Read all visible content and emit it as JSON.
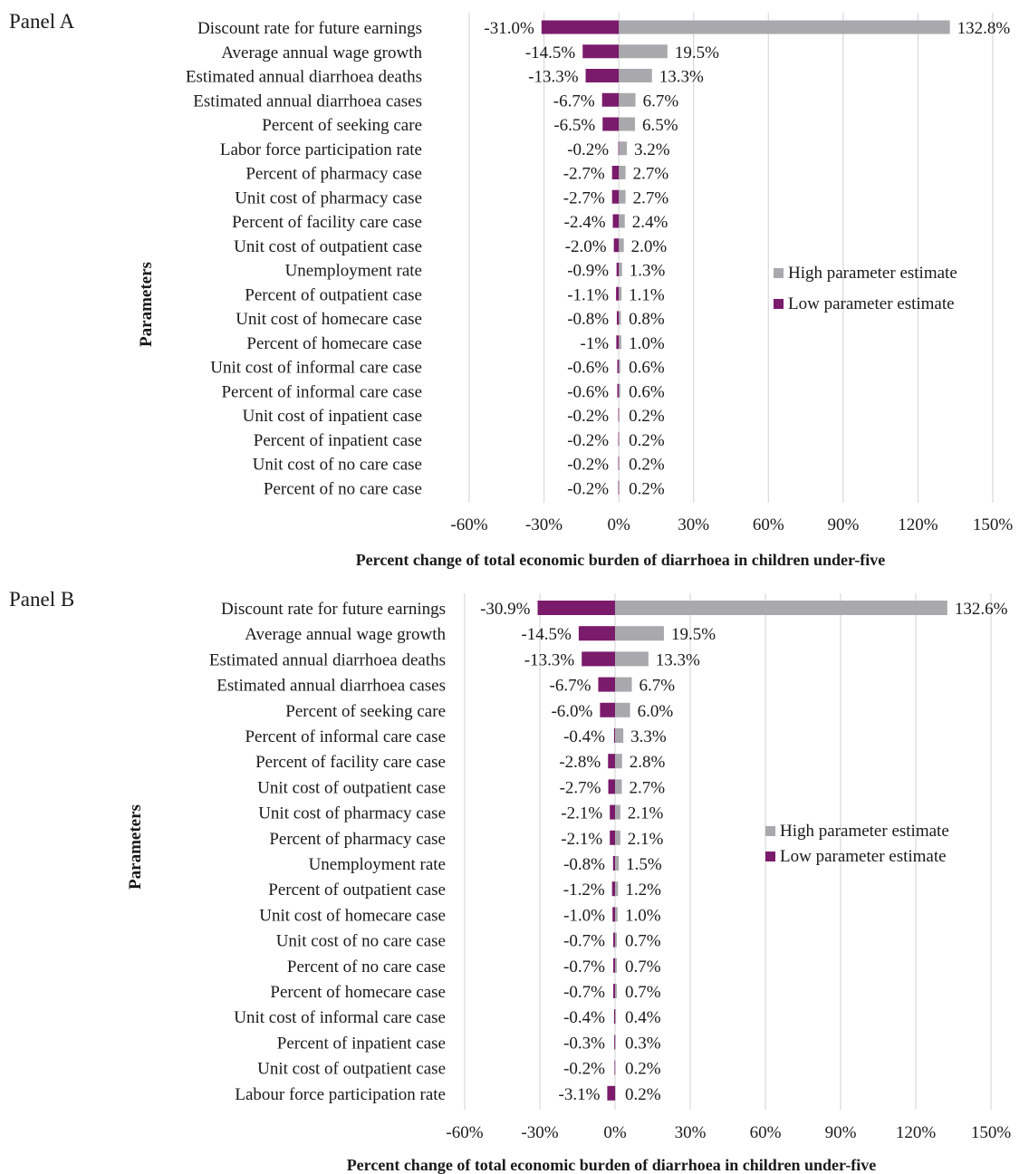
{
  "colors": {
    "high": "#a9a9ad",
    "low": "#7b1b6b",
    "grid": "#d9d9d9"
  },
  "chart_data": [
    {
      "type": "bar",
      "orientation": "horizontal-tornado",
      "panel_label": "Panel A",
      "xlabel": "Percent change of total economic burden of  diarrhoea in children under-five",
      "ylabel": "Parameters",
      "xlim": [
        -60,
        150
      ],
      "xticks": [
        -60,
        -30,
        0,
        30,
        60,
        90,
        120,
        150
      ],
      "xtick_labels": [
        "-60%",
        "-30%",
        "0%",
        "30%",
        "60%",
        "90%",
        "120%",
        "150%"
      ],
      "grid": "vertical",
      "legend_position": "right",
      "legend": [
        "High parameter estimate",
        "Low parameter estimate"
      ],
      "categories": [
        "Discount rate for future earnings",
        "Average annual wage growth",
        "Estimated annual diarrhoea deaths",
        "Estimated annual diarrhoea cases",
        "Percent of seeking care",
        "Labor force participation rate",
        "Percent of pharmacy case",
        "Unit cost of pharmacy case",
        "Percent of facility care case",
        "Unit cost of outpatient case",
        "Unemployment rate",
        "Percent of outpatient case",
        "Unit cost of homecare case",
        "Percent of homecare case",
        "Unit cost of informal care case",
        "Percent of informal care case",
        "Unit cost of inpatient case",
        "Percent of inpatient case",
        "Unit cost of no care case",
        "Percent of no care case"
      ],
      "series": [
        {
          "name": "High parameter estimate",
          "values": [
            132.8,
            19.5,
            13.3,
            6.7,
            6.5,
            3.2,
            2.7,
            2.7,
            2.4,
            2.0,
            1.3,
            1.1,
            0.8,
            1.0,
            0.6,
            0.6,
            0.2,
            0.2,
            0.2,
            0.2
          ],
          "labels": [
            "132.8%",
            "19.5%",
            "13.3%",
            "6.7%",
            "6.5%",
            "3.2%",
            "2.7%",
            "2.7%",
            "2.4%",
            "2.0%",
            "1.3%",
            "1.1%",
            "0.8%",
            "1.0%",
            "0.6%",
            "0.6%",
            "0.2%",
            "0.2%",
            "0.2%",
            "0.2%"
          ]
        },
        {
          "name": "Low parameter estimate",
          "values": [
            -31.0,
            -14.5,
            -13.3,
            -6.7,
            -6.5,
            -0.2,
            -2.7,
            -2.7,
            -2.4,
            -2.0,
            -0.9,
            -1.1,
            -0.8,
            -1.0,
            -0.6,
            -0.6,
            -0.2,
            -0.2,
            -0.2,
            -0.2
          ],
          "labels": [
            "-31.0%",
            "-14.5%",
            "-13.3%",
            "-6.7%",
            "-6.5%",
            "-0.2%",
            "-2.7%",
            "-2.7%",
            "-2.4%",
            "-2.0%",
            "-0.9%",
            "-1.1%",
            "-0.8%",
            "-1%",
            "-0.6%",
            "-0.6%",
            "-0.2%",
            "-0.2%",
            "-0.2%",
            "-0.2%"
          ]
        }
      ]
    },
    {
      "type": "bar",
      "orientation": "horizontal-tornado",
      "panel_label": "Panel B",
      "xlabel": "Percent change of total economic burden of diarrhoea in children under-five",
      "ylabel": "Parameters",
      "xlim": [
        -60,
        150
      ],
      "xticks": [
        -60,
        -30,
        0,
        30,
        60,
        90,
        120,
        150
      ],
      "xtick_labels": [
        "-60%",
        "-30%",
        "0%",
        "30%",
        "60%",
        "90%",
        "120%",
        "150%"
      ],
      "grid": "vertical",
      "legend_position": "right",
      "legend": [
        "High parameter estimate",
        "Low parameter estimate"
      ],
      "categories": [
        "Discount rate for future earnings",
        "Average annual wage growth",
        "Estimated annual diarrhoea deaths",
        "Estimated annual diarrhoea cases",
        "Percent of seeking care",
        "Percent of informal care case",
        "Percent of facility care case",
        "Unit cost of outpatient case",
        "Unit cost of pharmacy case",
        "Percent of pharmacy case",
        "Unemployment rate",
        "Percent of outpatient case",
        "Unit cost of homecare case",
        "Unit cost of no care case",
        "Percent of no care case",
        "Percent of homecare case",
        "Unit cost of informal care case",
        "Percent of inpatient case",
        "Unit cost of outpatient case",
        "Labour force participation rate"
      ],
      "series": [
        {
          "name": "High parameter estimate",
          "values": [
            132.6,
            19.5,
            13.3,
            6.7,
            6.0,
            3.3,
            2.8,
            2.7,
            2.1,
            2.1,
            1.5,
            1.2,
            1.0,
            0.7,
            0.7,
            0.7,
            0.4,
            0.3,
            0.2,
            0.2
          ],
          "labels": [
            "132.6%",
            "19.5%",
            "13.3%",
            "6.7%",
            "6.0%",
            "3.3%",
            "2.8%",
            "2.7%",
            "2.1%",
            "2.1%",
            "1.5%",
            "1.2%",
            "1.0%",
            "0.7%",
            "0.7%",
            "0.7%",
            "0.4%",
            "0.3%",
            "0.2%",
            "0.2%"
          ]
        },
        {
          "name": "Low parameter estimate",
          "values": [
            -30.9,
            -14.5,
            -13.3,
            -6.7,
            -6.0,
            -0.4,
            -2.8,
            -2.7,
            -2.1,
            -2.1,
            -0.8,
            -1.2,
            -1.0,
            -0.7,
            -0.7,
            -0.7,
            -0.4,
            -0.3,
            -0.2,
            -3.1
          ],
          "labels": [
            "-30.9%",
            "-14.5%",
            "-13.3%",
            "-6.7%",
            "-6.0%",
            "-0.4%",
            "-2.8%",
            "-2.7%",
            "-2.1%",
            "-2.1%",
            "-0.8%",
            "-1.2%",
            "-1.0%",
            "-0.7%",
            "-0.7%",
            "-0.7%",
            "-0.4%",
            "-0.3%",
            "-0.2%",
            "-3.1%"
          ]
        }
      ]
    }
  ]
}
